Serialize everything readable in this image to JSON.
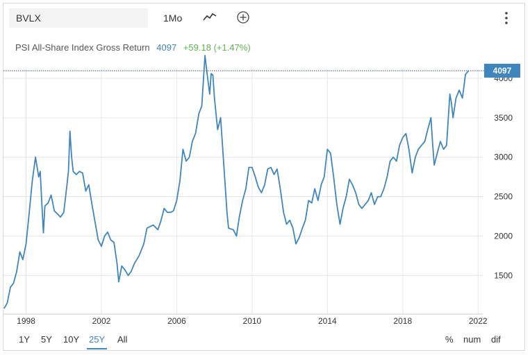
{
  "toolbar": {
    "symbol": "BVLX",
    "period": "1Mo",
    "chart_type_icon": "line-chart-icon",
    "add_icon": "plus-circle-icon",
    "more_icon": "vertical-dots-icon"
  },
  "legend": {
    "name": "PSI All-Share Index Gross Return",
    "value": "4097",
    "change": "+59.18 (+1.47%)"
  },
  "range_buttons": [
    "1Y",
    "5Y",
    "10Y",
    "25Y",
    "All"
  ],
  "active_range": "25Y",
  "scale_buttons": [
    "%",
    "num",
    "dif"
  ],
  "colors": {
    "line": "#3d86c0",
    "change": "#5db64a",
    "grid": "#e6e6e6",
    "label_bg": "#3d86c0"
  },
  "chart_data": {
    "type": "line",
    "title": "PSI All-Share Index Gross Return",
    "xlabel": "",
    "ylabel": "",
    "xlim": [
      1996.8,
      2022.25
    ],
    "ylim": [
      1010,
      4290
    ],
    "x_ticks": [
      1998,
      2002,
      2006,
      2010,
      2014,
      2018,
      2022
    ],
    "x_tick_labels": [
      "1998",
      "2002",
      "2006",
      "2010",
      "2014",
      "2018",
      "2022"
    ],
    "y_ticks": [
      1500,
      2000,
      2500,
      3000,
      3500,
      4000
    ],
    "y_tick_labels": [
      "1500",
      "2000",
      "2500",
      "3000",
      "3500",
      "4000"
    ],
    "current_label": "4097",
    "current_value": 4097,
    "grid": true,
    "series": [
      {
        "name": "PSI All-Share Index Gross Return",
        "points": [
          [
            1996.83,
            1080
          ],
          [
            1997.0,
            1150
          ],
          [
            1997.17,
            1350
          ],
          [
            1997.33,
            1400
          ],
          [
            1997.5,
            1550
          ],
          [
            1997.67,
            1800
          ],
          [
            1997.83,
            1700
          ],
          [
            1998.0,
            1900
          ],
          [
            1998.17,
            2300
          ],
          [
            1998.33,
            2700
          ],
          [
            1998.5,
            3000
          ],
          [
            1998.67,
            2750
          ],
          [
            1998.75,
            2820
          ],
          [
            1998.83,
            2450
          ],
          [
            1998.92,
            2040
          ],
          [
            1999.0,
            2380
          ],
          [
            1999.17,
            2420
          ],
          [
            1999.33,
            2520
          ],
          [
            1999.5,
            2320
          ],
          [
            1999.67,
            2280
          ],
          [
            1999.83,
            2240
          ],
          [
            2000.0,
            2300
          ],
          [
            2000.17,
            2650
          ],
          [
            2000.25,
            2820
          ],
          [
            2000.33,
            3330
          ],
          [
            2000.42,
            3000
          ],
          [
            2000.5,
            2820
          ],
          [
            2000.67,
            2780
          ],
          [
            2000.83,
            2820
          ],
          [
            2001.0,
            2800
          ],
          [
            2001.17,
            2570
          ],
          [
            2001.33,
            2650
          ],
          [
            2001.5,
            2400
          ],
          [
            2001.67,
            2170
          ],
          [
            2001.83,
            1950
          ],
          [
            2002.0,
            1870
          ],
          [
            2002.17,
            2000
          ],
          [
            2002.33,
            2050
          ],
          [
            2002.5,
            1950
          ],
          [
            2002.67,
            1920
          ],
          [
            2002.83,
            1650
          ],
          [
            2002.92,
            1420
          ],
          [
            2003.08,
            1620
          ],
          [
            2003.25,
            1570
          ],
          [
            2003.42,
            1500
          ],
          [
            2003.58,
            1550
          ],
          [
            2003.75,
            1650
          ],
          [
            2004.0,
            1750
          ],
          [
            2004.25,
            1900
          ],
          [
            2004.42,
            2100
          ],
          [
            2004.58,
            2120
          ],
          [
            2004.75,
            2140
          ],
          [
            2005.0,
            2080
          ],
          [
            2005.17,
            2200
          ],
          [
            2005.33,
            2350
          ],
          [
            2005.5,
            2300
          ],
          [
            2005.67,
            2300
          ],
          [
            2005.83,
            2320
          ],
          [
            2006.0,
            2450
          ],
          [
            2006.17,
            2700
          ],
          [
            2006.33,
            3100
          ],
          [
            2006.5,
            2950
          ],
          [
            2006.67,
            3000
          ],
          [
            2006.83,
            3200
          ],
          [
            2007.0,
            3300
          ],
          [
            2007.17,
            3550
          ],
          [
            2007.33,
            3650
          ],
          [
            2007.5,
            4290
          ],
          [
            2007.58,
            4120
          ],
          [
            2007.67,
            3950
          ],
          [
            2007.75,
            3800
          ],
          [
            2007.83,
            4060
          ],
          [
            2007.92,
            4040
          ],
          [
            2008.0,
            3750
          ],
          [
            2008.17,
            3350
          ],
          [
            2008.33,
            3500
          ],
          [
            2008.5,
            2900
          ],
          [
            2008.67,
            2300
          ],
          [
            2008.75,
            2100
          ],
          [
            2009.0,
            2080
          ],
          [
            2009.17,
            2000
          ],
          [
            2009.33,
            2250
          ],
          [
            2009.5,
            2450
          ],
          [
            2009.67,
            2600
          ],
          [
            2009.83,
            2870
          ],
          [
            2010.0,
            2870
          ],
          [
            2010.17,
            2750
          ],
          [
            2010.33,
            2620
          ],
          [
            2010.5,
            2550
          ],
          [
            2010.67,
            2650
          ],
          [
            2010.83,
            2850
          ],
          [
            2011.0,
            2870
          ],
          [
            2011.17,
            2780
          ],
          [
            2011.33,
            2850
          ],
          [
            2011.5,
            2600
          ],
          [
            2011.67,
            2300
          ],
          [
            2011.83,
            2150
          ],
          [
            2012.0,
            2200
          ],
          [
            2012.17,
            2100
          ],
          [
            2012.33,
            1900
          ],
          [
            2012.5,
            1980
          ],
          [
            2012.67,
            2100
          ],
          [
            2012.83,
            2200
          ],
          [
            2013.0,
            2450
          ],
          [
            2013.17,
            2420
          ],
          [
            2013.33,
            2600
          ],
          [
            2013.5,
            2450
          ],
          [
            2013.67,
            2650
          ],
          [
            2013.83,
            2750
          ],
          [
            2014.0,
            3100
          ],
          [
            2014.17,
            3050
          ],
          [
            2014.33,
            2750
          ],
          [
            2014.5,
            2400
          ],
          [
            2014.67,
            2150
          ],
          [
            2014.83,
            2350
          ],
          [
            2015.0,
            2500
          ],
          [
            2015.17,
            2720
          ],
          [
            2015.33,
            2650
          ],
          [
            2015.5,
            2550
          ],
          [
            2015.67,
            2400
          ],
          [
            2015.83,
            2350
          ],
          [
            2016.0,
            2400
          ],
          [
            2016.17,
            2450
          ],
          [
            2016.33,
            2550
          ],
          [
            2016.5,
            2400
          ],
          [
            2016.67,
            2500
          ],
          [
            2016.83,
            2500
          ],
          [
            2017.0,
            2600
          ],
          [
            2017.17,
            2750
          ],
          [
            2017.33,
            2950
          ],
          [
            2017.5,
            3000
          ],
          [
            2017.67,
            2950
          ],
          [
            2017.83,
            3150
          ],
          [
            2018.0,
            3250
          ],
          [
            2018.17,
            3300
          ],
          [
            2018.33,
            3100
          ],
          [
            2018.5,
            2800
          ],
          [
            2018.67,
            3000
          ],
          [
            2018.83,
            3100
          ],
          [
            2019.0,
            3150
          ],
          [
            2019.17,
            3200
          ],
          [
            2019.33,
            3350
          ],
          [
            2019.5,
            3500
          ],
          [
            2019.58,
            3200
          ],
          [
            2019.67,
            2900
          ],
          [
            2019.83,
            3050
          ],
          [
            2020.0,
            3200
          ],
          [
            2020.17,
            3100
          ],
          [
            2020.33,
            3150
          ],
          [
            2020.5,
            3800
          ],
          [
            2020.58,
            3700
          ],
          [
            2020.67,
            3500
          ],
          [
            2020.83,
            3750
          ],
          [
            2021.0,
            3850
          ],
          [
            2021.17,
            3750
          ],
          [
            2021.33,
            4050
          ],
          [
            2021.5,
            4097
          ]
        ]
      }
    ]
  }
}
